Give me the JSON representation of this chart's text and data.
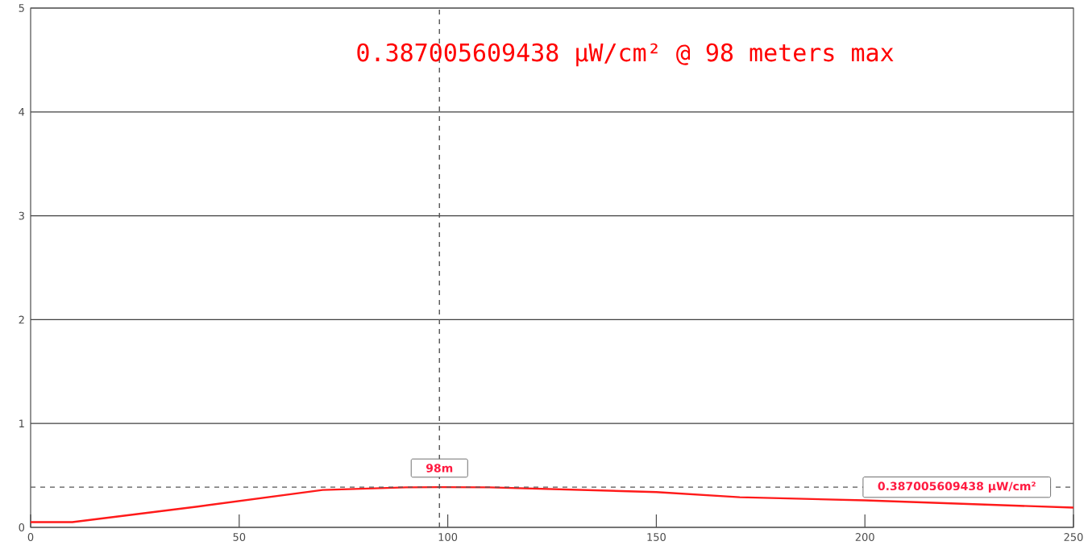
{
  "chart_data": {
    "type": "line",
    "title": "0.387005609438 μW/cm² @ 98 meters max",
    "x": [
      0,
      10,
      40,
      70,
      90,
      98,
      110,
      150,
      170,
      200,
      250
    ],
    "series": [
      {
        "color": "#ff1a1a",
        "values": [
          0.05,
          0.05,
          0.2,
          0.36,
          0.385,
          0.387,
          0.385,
          0.34,
          0.29,
          0.26,
          0.19
        ]
      }
    ],
    "xlim": [
      0,
      250
    ],
    "ylim": [
      0,
      5
    ],
    "xticks": [
      0,
      50,
      100,
      150,
      200,
      250
    ],
    "yticks": [
      0,
      1,
      2,
      3,
      4,
      5
    ],
    "grid": "y",
    "marker": "none",
    "line_style": "solid",
    "ref_lines": [
      {
        "axis": "x",
        "value": 98,
        "label": "98m",
        "color": "#555555",
        "line_style": "dashed"
      },
      {
        "axis": "y",
        "value": 0.387005609438,
        "label": "0.387005609438 μW/cm²",
        "color": "#555555",
        "line_style": "dashed"
      }
    ]
  }
}
